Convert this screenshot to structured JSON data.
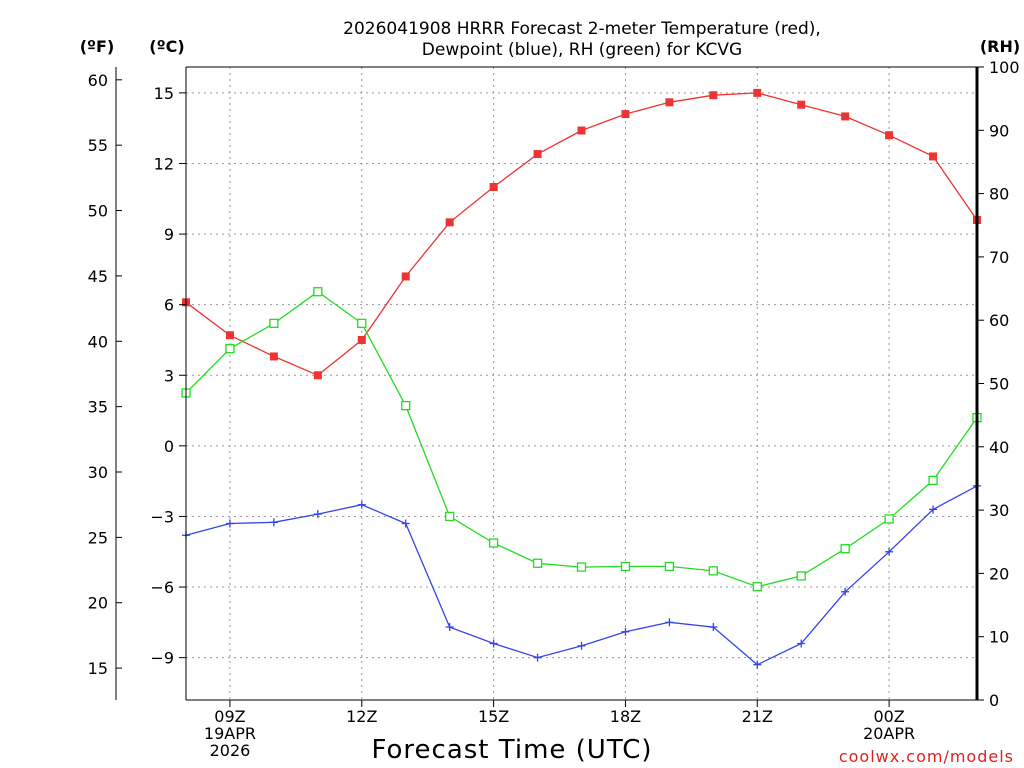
{
  "chart_data": {
    "type": "line",
    "title_line1": "2026041908 HRRR Forecast 2-meter Temperature (red),",
    "title_line2": "Dewpoint (blue), RH (green) for KCVG",
    "unit_f": "(ºF)",
    "unit_c": "(ºC)",
    "unit_rh": "(RH)",
    "xlabel": "Forecast Time (UTC)",
    "credit": "coolwx.com/models",
    "x_hours": [
      8,
      9,
      10,
      11,
      12,
      13,
      14,
      15,
      16,
      17,
      18,
      19,
      20,
      21,
      22,
      23,
      24,
      25,
      26
    ],
    "x_range": [
      8,
      26
    ],
    "x_ticks": [
      {
        "hour": 9,
        "lines": [
          "09Z",
          "19APR",
          "2026"
        ]
      },
      {
        "hour": 12,
        "lines": [
          "12Z"
        ]
      },
      {
        "hour": 15,
        "lines": [
          "15Z"
        ]
      },
      {
        "hour": 18,
        "lines": [
          "18Z"
        ]
      },
      {
        "hour": 21,
        "lines": [
          "21Z"
        ]
      },
      {
        "hour": 24,
        "lines": [
          "00Z",
          "20APR"
        ]
      }
    ],
    "c_range": [
      -10.8,
      16.1
    ],
    "c_ticks": [
      "15",
      "12",
      "9",
      "6",
      "3",
      "0",
      "−3",
      "−6",
      "−9"
    ],
    "c_tick_values": [
      15,
      12,
      9,
      6,
      3,
      0,
      -3,
      -6,
      -9
    ],
    "f_ticks": [
      "60",
      "55",
      "50",
      "45",
      "40",
      "35",
      "30",
      "25",
      "20",
      "15"
    ],
    "f_tick_values": [
      60,
      55,
      50,
      45,
      40,
      35,
      30,
      25,
      20,
      15
    ],
    "rh_range": [
      0,
      100
    ],
    "rh_ticks": [
      "100",
      "90",
      "80",
      "70",
      "60",
      "50",
      "40",
      "30",
      "20",
      "10",
      "0"
    ],
    "rh_tick_values": [
      100,
      90,
      80,
      70,
      60,
      50,
      40,
      30,
      20,
      10,
      0
    ],
    "series": [
      {
        "name": "Temperature",
        "axis": "C",
        "color": "#ee3333",
        "marker": "filled-square",
        "values": [
          6.1,
          4.7,
          3.8,
          3.0,
          4.5,
          7.2,
          9.5,
          11.0,
          12.4,
          13.4,
          14.1,
          14.6,
          14.9,
          15.0,
          14.5,
          14.0,
          13.2,
          12.3,
          9.6
        ]
      },
      {
        "name": "Dewpoint",
        "axis": "C",
        "color": "#3344ee",
        "marker": "plus",
        "values": [
          -3.8,
          -3.3,
          -3.25,
          -2.9,
          -2.5,
          -3.3,
          -7.7,
          -8.4,
          -9.0,
          -8.5,
          -7.9,
          -7.5,
          -7.7,
          -9.3,
          -8.4,
          -6.2,
          -4.5,
          -2.7,
          -1.7
        ]
      },
      {
        "name": "RH",
        "axis": "RH",
        "color": "#22dd22",
        "marker": "open-square",
        "values": [
          48.5,
          55.5,
          59.5,
          64.5,
          59.5,
          46.5,
          29.0,
          24.8,
          21.6,
          21.0,
          21.1,
          21.1,
          20.4,
          17.9,
          19.6,
          23.9,
          28.6,
          34.7,
          44.6
        ]
      }
    ]
  }
}
